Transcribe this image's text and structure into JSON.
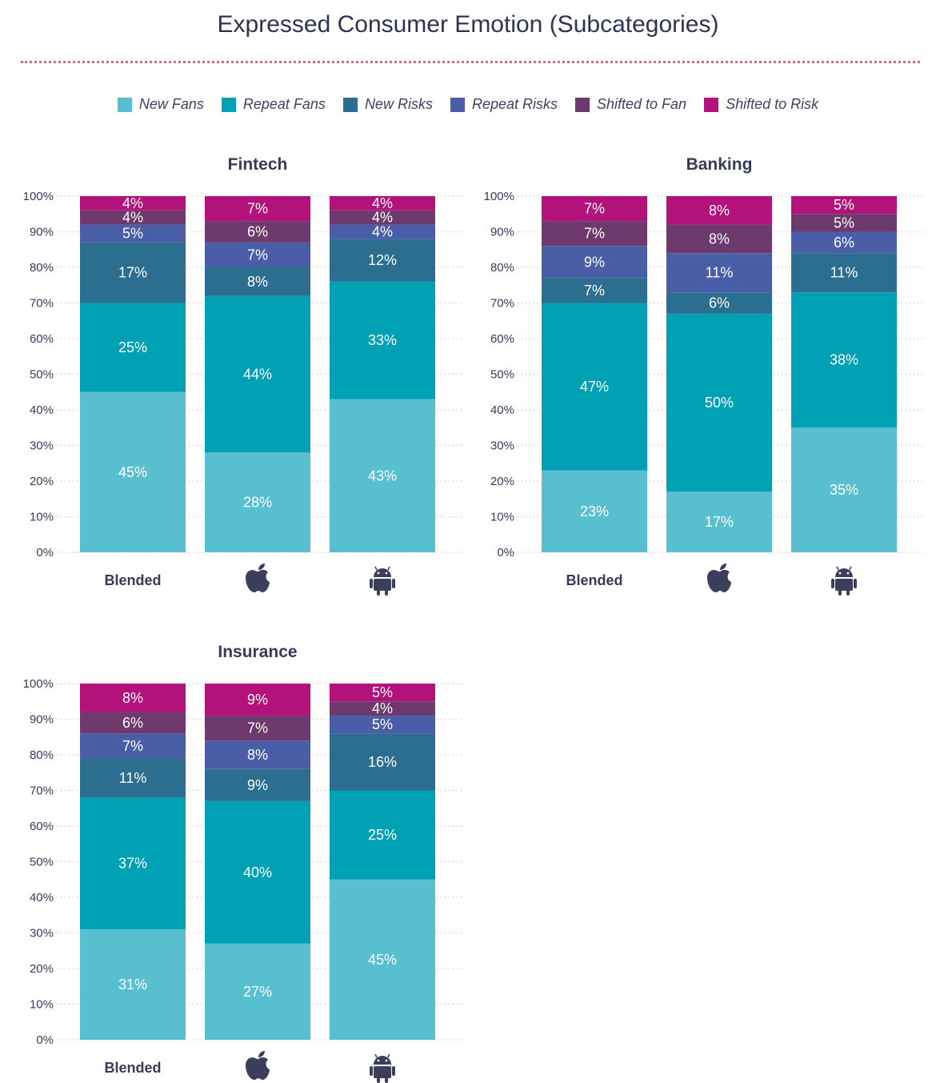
{
  "title": "Expressed Consumer Emotion (Subcategories)",
  "colors": {
    "title_divider": "#e8616b",
    "New Fans": "#58bfd1",
    "Repeat Fans": "#00a1b5",
    "New Risks": "#2b6e8f",
    "Repeat Risks": "#4a5ea8",
    "Shifted to Fan": "#6e3a6d",
    "Shifted to Risk": "#b3127a"
  },
  "legend": [
    "New Fans",
    "Repeat Fans",
    "New Risks",
    "Repeat Risks",
    "Shifted to Fan",
    "Shifted to Risk"
  ],
  "chart_data": [
    {
      "type": "bar",
      "stacked": true,
      "title": "Fintech",
      "categories": [
        "Blended",
        "apple-icon",
        "android-icon"
      ],
      "ylim": [
        0,
        100
      ],
      "yticks": [
        "0%",
        "10%",
        "20%",
        "30%",
        "40%",
        "50%",
        "60%",
        "70%",
        "80%",
        "90%",
        "100%"
      ],
      "grid": true,
      "series": [
        {
          "name": "New Fans",
          "values": [
            45,
            28,
            43
          ]
        },
        {
          "name": "Repeat Fans",
          "values": [
            25,
            44,
            33
          ]
        },
        {
          "name": "New Risks",
          "values": [
            17,
            8,
            12
          ]
        },
        {
          "name": "Repeat Risks",
          "values": [
            5,
            7,
            4
          ]
        },
        {
          "name": "Shifted to Fan",
          "values": [
            4,
            6,
            4
          ]
        },
        {
          "name": "Shifted to Risk",
          "values": [
            4,
            7,
            4
          ]
        }
      ]
    },
    {
      "type": "bar",
      "stacked": true,
      "title": "Banking",
      "categories": [
        "Blended",
        "apple-icon",
        "android-icon"
      ],
      "ylim": [
        0,
        100
      ],
      "yticks": [
        "0%",
        "10%",
        "20%",
        "30%",
        "40%",
        "50%",
        "60%",
        "70%",
        "80%",
        "90%",
        "100%"
      ],
      "grid": true,
      "series": [
        {
          "name": "New Fans",
          "values": [
            23,
            17,
            35
          ]
        },
        {
          "name": "Repeat Fans",
          "values": [
            47,
            50,
            38
          ]
        },
        {
          "name": "New Risks",
          "values": [
            7,
            6,
            11
          ]
        },
        {
          "name": "Repeat Risks",
          "values": [
            9,
            11,
            6
          ]
        },
        {
          "name": "Shifted to Fan",
          "values": [
            7,
            8,
            5
          ]
        },
        {
          "name": "Shifted to Risk",
          "values": [
            7,
            8,
            5
          ]
        }
      ]
    },
    {
      "type": "bar",
      "stacked": true,
      "title": "Insurance",
      "categories": [
        "Blended",
        "apple-icon",
        "android-icon"
      ],
      "ylim": [
        0,
        100
      ],
      "yticks": [
        "0%",
        "10%",
        "20%",
        "30%",
        "40%",
        "50%",
        "60%",
        "70%",
        "80%",
        "90%",
        "100%"
      ],
      "grid": true,
      "series": [
        {
          "name": "New Fans",
          "values": [
            31,
            27,
            45
          ]
        },
        {
          "name": "Repeat Fans",
          "values": [
            37,
            40,
            25
          ]
        },
        {
          "name": "New Risks",
          "values": [
            11,
            9,
            16
          ]
        },
        {
          "name": "Repeat Risks",
          "values": [
            7,
            8,
            5
          ]
        },
        {
          "name": "Shifted to Fan",
          "values": [
            6,
            7,
            4
          ]
        },
        {
          "name": "Shifted to Risk",
          "values": [
            8,
            9,
            5
          ]
        }
      ]
    }
  ]
}
